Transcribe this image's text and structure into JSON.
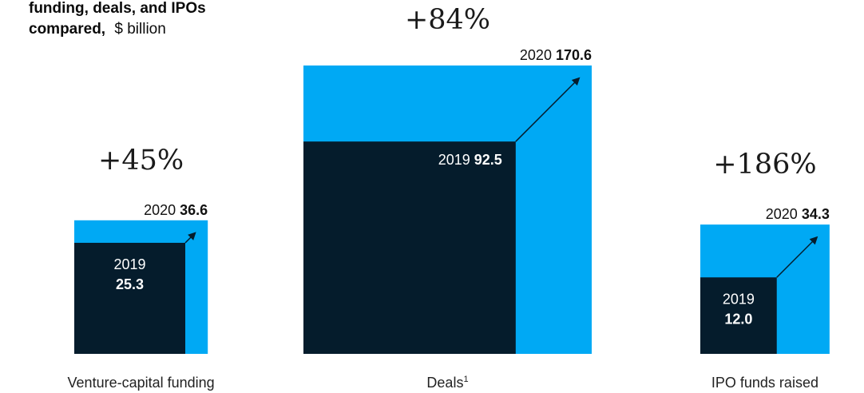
{
  "chart_data": {
    "type": "bar",
    "title_line1": "funding, deals, and IPOs",
    "title_line2_bold": "compared,",
    "title_line2_unit": "$ billion",
    "colors": {
      "value_2020": "#00a9f4",
      "value_2019": "#051c2c",
      "arrow": "#051c2c",
      "text": "#1a1a1a"
    },
    "groups": [
      {
        "category": "Venture-capital funding",
        "footnote": "",
        "change": "+45%",
        "label_2019": "2019",
        "value_2019": 25.3,
        "value_2019_text": "25.3",
        "label_2020": "2020",
        "value_2020": 36.6,
        "value_2020_text": "36.6"
      },
      {
        "category": "Deals",
        "footnote": "1",
        "change": "+84%",
        "label_2019": "2019",
        "value_2019": 92.5,
        "value_2019_text": "92.5",
        "label_2020": "2020",
        "value_2020": 170.6,
        "value_2020_text": "170.6"
      },
      {
        "category": "IPO funds raised",
        "footnote": "",
        "change": "+186%",
        "label_2019": "2019",
        "value_2019": 12.0,
        "value_2019_text": "12.0",
        "label_2020": "2020",
        "value_2020": 34.3,
        "value_2020_text": "34.3"
      }
    ]
  }
}
